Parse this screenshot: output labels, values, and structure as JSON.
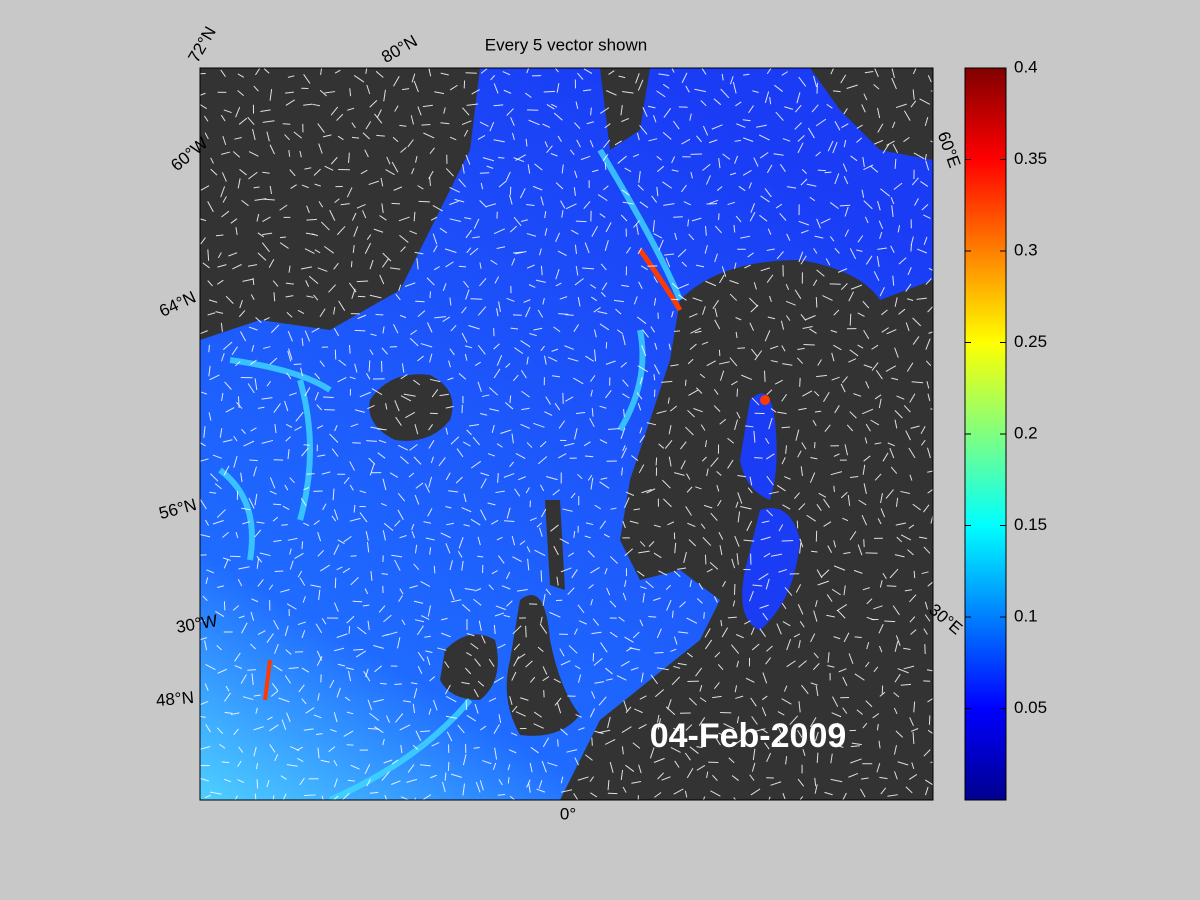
{
  "title": "Every 5 vector shown",
  "date_label": "04-Feb-2009",
  "lat_lon_labels": [
    "72°N",
    "80°N",
    "60°W",
    "64°N",
    "56°N",
    "30°W",
    "48°N",
    "60°E",
    "30°E",
    "0°"
  ],
  "colorbar": {
    "lim": [
      0,
      0.4
    ],
    "ticks": [
      0.05,
      0.1,
      0.15,
      0.2,
      0.25,
      0.3,
      0.35,
      0.4
    ]
  }
}
